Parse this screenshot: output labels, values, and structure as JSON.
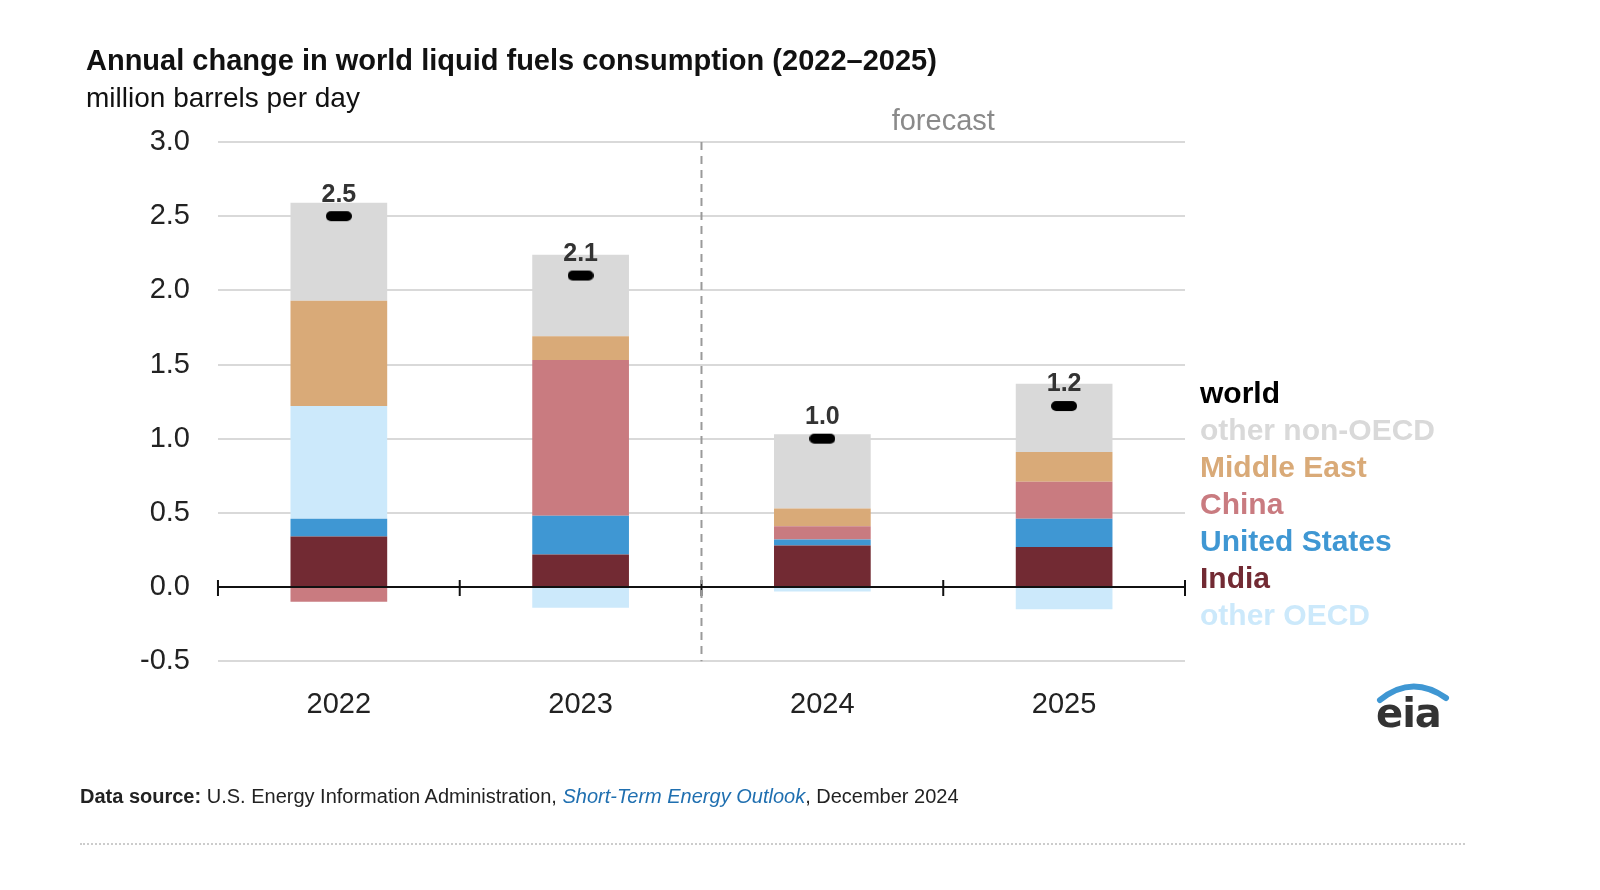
{
  "chart_data": {
    "type": "bar",
    "title": "Annual change in world liquid fuels consumption (2022–2025)",
    "subtitle": "million barrels per day",
    "categories": [
      "2022",
      "2023",
      "2024",
      "2025"
    ],
    "stacked": true,
    "grid": true,
    "data_labels": true,
    "annotations": [
      {
        "text": "forecast",
        "from": "2024"
      }
    ],
    "series": [
      {
        "name": "world",
        "type": "marker",
        "marker": "dash",
        "color": "#000000",
        "values": [
          2.5,
          2.1,
          1.0,
          1.22
        ],
        "value_labels": [
          "2.5",
          "2.1",
          "1.0",
          "1.2"
        ]
      },
      {
        "name": "other non-OECD",
        "color": "#d9d9d9",
        "values": [
          0.66,
          0.55,
          0.5,
          0.46
        ]
      },
      {
        "name": "Middle East",
        "color": "#d9aa78",
        "values": [
          0.71,
          0.16,
          0.12,
          0.2
        ]
      },
      {
        "name": "China",
        "color": "#c97b80",
        "values": [
          -0.1,
          1.05,
          0.09,
          0.25
        ]
      },
      {
        "name": "United States",
        "color": "#3f97d3",
        "values": [
          0.12,
          0.26,
          0.04,
          0.19
        ]
      },
      {
        "name": "India",
        "color": "#722a33",
        "values": [
          0.34,
          0.22,
          0.28,
          0.27
        ]
      },
      {
        "name": "other OECD",
        "color": "#cce9fb",
        "values": [
          0.76,
          -0.14,
          -0.03,
          -0.15
        ]
      }
    ],
    "ylim": [
      -0.5,
      3.0
    ],
    "yticks": [
      {
        "value": -0.5,
        "label": "-0.5"
      },
      {
        "value": 0,
        "label": "0.0"
      },
      0.5,
      {
        "value": 1,
        "label": "1.0"
      },
      1.5,
      {
        "value": 2,
        "label": "2.0"
      },
      2.5,
      {
        "value": 3,
        "label": "3.0"
      }
    ],
    "source": [
      "Data source:",
      " U.S. Energy Information Administration, ",
      "Short-Term Energy Outlook",
      ", December 2024"
    ],
    "logo": "eia"
  }
}
